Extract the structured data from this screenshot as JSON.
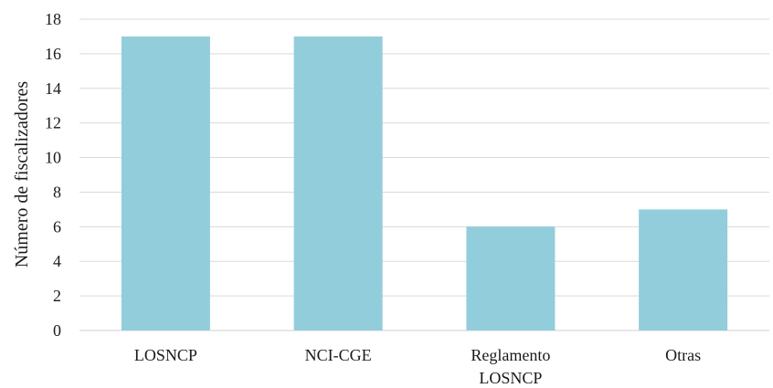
{
  "chart_data": {
    "type": "bar",
    "categories": [
      [
        "LOSNCP"
      ],
      [
        "NCI-CGE"
      ],
      [
        "Reglamento",
        "LOSNCP"
      ],
      [
        "Otras"
      ]
    ],
    "values": [
      17,
      17,
      6,
      7
    ],
    "title": "",
    "xlabel": "",
    "ylabel": "Número de fiscalizadores",
    "ylim": [
      0,
      18
    ],
    "yticks": [
      0,
      2,
      4,
      6,
      8,
      10,
      12,
      14,
      16,
      18
    ],
    "grid": true,
    "bar_color": "#92cddc"
  }
}
